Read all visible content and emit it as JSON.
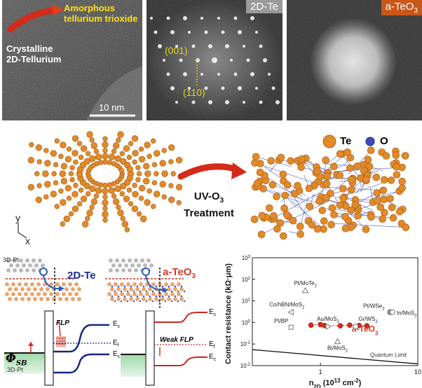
{
  "tem": {
    "label_amorphous_line1": "Amorphous",
    "label_amorphous_line2": "tellurium trioxide",
    "label_crystalline_line1": "Crystalline",
    "label_crystalline_line2": "2D-Tellurium",
    "scale_bar": "10 nm"
  },
  "fft_te": {
    "tag": "2D-Te",
    "plane_1": "(001)",
    "plane_2": "(110)"
  },
  "fft_teo3": {
    "tag_main": "a-TeO",
    "tag_sub": "3"
  },
  "treatment": {
    "line1": "UV-O",
    "line1_sub": "3",
    "line2": "Treatment"
  },
  "legend": {
    "te": "Te",
    "o": "O"
  },
  "axes3d": {
    "y": "y",
    "x": "x"
  },
  "band": {
    "left_metal": "3D-Pt",
    "left_title": "2D-Te",
    "right_title_main": "a-TeO",
    "right_title_sub": "3",
    "flp": "FLP",
    "weak_flp": "Weak FLP",
    "ec": "E",
    "ec_sub": "c",
    "ef": "E",
    "ef_sub": "f",
    "phi": "Φ",
    "phi_sub": "SB",
    "bottom_metal": "3D-Pt"
  },
  "colors": {
    "orange": "#e08a2a",
    "red_arrow": "#d42a1a",
    "blue": "#1a2a9a",
    "red_text": "#d63a2a",
    "navy_curve": "#152880",
    "red_curve": "#c8281e"
  },
  "chart_data": {
    "type": "scatter",
    "title": "",
    "xlabel": "n_2D (10^13 cm^-2)",
    "ylabel": "Contact resistance (kΩ·μm)",
    "x_scale": "log",
    "y_scale": "log",
    "xlim": [
      0.2,
      10
    ],
    "ylim": [
      0.01,
      1000
    ],
    "x_ticks": [
      {
        "v": 1,
        "label": "1"
      },
      {
        "v": 10,
        "label": "10"
      }
    ],
    "y_ticks": [
      {
        "v": 0.01,
        "base": "10",
        "exp": "-2"
      },
      {
        "v": 0.1,
        "base": "10",
        "exp": "-1"
      },
      {
        "v": 1,
        "base": "10",
        "exp": "0"
      },
      {
        "v": 10,
        "base": "10",
        "exp": "1"
      },
      {
        "v": 100,
        "base": "10",
        "exp": "2"
      },
      {
        "v": 1000,
        "base": "10",
        "exp": "3"
      }
    ],
    "points": [
      {
        "name": "Pt/MoTe2",
        "x": 0.7,
        "y": 30,
        "marker": "triangle-up"
      },
      {
        "name": "Co/hBN/MoS2",
        "x": 0.5,
        "y": 3,
        "marker": "triangle-left"
      },
      {
        "name": "Pt/BP",
        "x": 0.5,
        "y": 0.6,
        "marker": "square"
      },
      {
        "name": "Au/MoS2",
        "x": 1.2,
        "y": 0.65,
        "marker": "triangle-right"
      },
      {
        "name": "Gr/WS2",
        "x": 2.3,
        "y": 0.65,
        "marker": "circle-open"
      },
      {
        "name": "Pt/WSe2",
        "x": 5.2,
        "y": 3,
        "marker": "circle"
      },
      {
        "name": "In/MoS2",
        "x": 5.5,
        "y": 3,
        "marker": "circle-open"
      },
      {
        "name": "Bi/MoS2",
        "x": 1.5,
        "y": 0.13,
        "marker": "triangle-up"
      }
    ],
    "point_labels": [
      {
        "text": "Pt/MoTe",
        "sub": "2"
      },
      {
        "text": "Co/hBN/MoS",
        "sub": "2"
      },
      {
        "text": "Pt/BP",
        "sub": ""
      },
      {
        "text": "Au/MoS",
        "sub": "2"
      },
      {
        "text": "Gr/WS",
        "sub": "2"
      },
      {
        "text": "Pt/WSe",
        "sub": "2"
      },
      {
        "text": "In/MoS",
        "sub": "2"
      },
      {
        "text": "Bi/MoS",
        "sub": "2"
      }
    ],
    "series": [
      {
        "name": "a-TeO3",
        "x": [
          0.8,
          1.0,
          1.1,
          1.6,
          2.0,
          2.5,
          3.0
        ],
        "y": [
          0.75,
          0.8,
          0.72,
          0.7,
          0.75,
          0.72,
          0.7
        ]
      }
    ],
    "series_label": {
      "main": "a-TeO",
      "sub": "3"
    },
    "quantum_limit": {
      "name": "Quantum Limit",
      "x": [
        0.2,
        10
      ],
      "y": [
        0.055,
        0.012
      ]
    }
  }
}
